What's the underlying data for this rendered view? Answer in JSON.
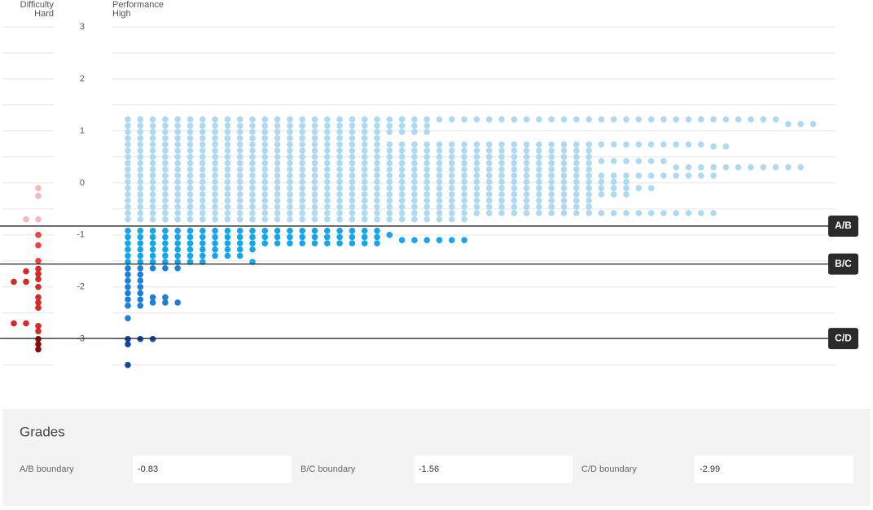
{
  "chart_data": {
    "type": "dot",
    "difficulty_header": [
      "Difficulty",
      "Hard"
    ],
    "performance_header": [
      "Performance",
      "High"
    ],
    "ylim": [
      -3.52,
      3
    ],
    "yticks": [
      3,
      2,
      1,
      0,
      -1,
      -2,
      -3
    ],
    "grid_lines": [
      3,
      2.5,
      2,
      1.5,
      1,
      0.5,
      0,
      -0.5,
      -1,
      -1.5,
      -2,
      -2.5,
      -3,
      -3.5
    ],
    "boundaries": [
      {
        "label": "A/B",
        "value": -0.83
      },
      {
        "label": "B/C",
        "value": -1.56
      },
      {
        "label": "C/D",
        "value": -2.99
      }
    ],
    "performance_colors": [
      "#aed9f2",
      "#14a6ea",
      "#1c7fdb",
      "#0d4aa6"
    ],
    "difficulty_colors": [
      "#f6b8b8",
      "#ee4040",
      "#d42a2a",
      "#8b0a0a"
    ],
    "difficulty_columns": [
      [
        -1.9,
        -2.7
      ],
      [
        -0.7,
        -1.7,
        -1.9,
        -2.7
      ],
      [
        -0.1,
        -0.25,
        -0.7,
        -1,
        -1.2,
        -1.5,
        -1.65,
        -1.75,
        -1.85,
        -2,
        -2.2,
        -2.3,
        -2.4,
        -2.75,
        -2.85,
        -3,
        -3.1,
        -3.2
      ]
    ],
    "performance_columns": [
      [
        1.22,
        1.1,
        0.98,
        0.86,
        0.74,
        0.62,
        0.5,
        0.38,
        0.26,
        0.14,
        0.02,
        -0.1,
        -0.22,
        -0.34,
        -0.46,
        -0.58,
        -0.7,
        -0.92,
        -1.04,
        -1.16,
        -1.28,
        -1.4,
        -1.52,
        -1.64,
        -1.76,
        -1.88,
        -2,
        -2.12,
        -2.24,
        -2.36,
        -2.6,
        -3,
        -3.1,
        -3.5
      ],
      [
        1.22,
        1.1,
        0.98,
        0.86,
        0.74,
        0.62,
        0.5,
        0.38,
        0.26,
        0.14,
        0.02,
        -0.1,
        -0.22,
        -0.34,
        -0.46,
        -0.58,
        -0.7,
        -0.92,
        -1.04,
        -1.16,
        -1.28,
        -1.4,
        -1.52,
        -1.64,
        -1.76,
        -1.88,
        -2,
        -2.12,
        -2.24,
        -2.36,
        -3
      ],
      [
        1.22,
        1.1,
        0.98,
        0.86,
        0.74,
        0.62,
        0.5,
        0.38,
        0.26,
        0.14,
        0.02,
        -0.1,
        -0.22,
        -0.34,
        -0.46,
        -0.58,
        -0.7,
        -0.92,
        -1.04,
        -1.16,
        -1.28,
        -1.4,
        -1.52,
        -1.64,
        -2.2,
        -2.3,
        -3
      ],
      [
        1.22,
        1.1,
        0.98,
        0.86,
        0.74,
        0.62,
        0.5,
        0.38,
        0.26,
        0.14,
        0.02,
        -0.1,
        -0.22,
        -0.34,
        -0.46,
        -0.58,
        -0.7,
        -0.92,
        -1.04,
        -1.16,
        -1.28,
        -1.4,
        -1.52,
        -1.64,
        -2.2,
        -2.3
      ],
      [
        1.22,
        1.1,
        0.98,
        0.86,
        0.74,
        0.62,
        0.5,
        0.38,
        0.26,
        0.14,
        0.02,
        -0.1,
        -0.22,
        -0.34,
        -0.46,
        -0.58,
        -0.7,
        -0.92,
        -1.04,
        -1.16,
        -1.28,
        -1.4,
        -1.52,
        -1.64,
        -2.3
      ],
      [
        1.22,
        1.1,
        0.98,
        0.86,
        0.74,
        0.62,
        0.5,
        0.38,
        0.26,
        0.14,
        0.02,
        -0.1,
        -0.22,
        -0.34,
        -0.46,
        -0.58,
        -0.7,
        -0.92,
        -1.04,
        -1.16,
        -1.28,
        -1.4,
        -1.52
      ],
      [
        1.22,
        1.1,
        0.98,
        0.86,
        0.74,
        0.62,
        0.5,
        0.38,
        0.26,
        0.14,
        0.02,
        -0.1,
        -0.22,
        -0.34,
        -0.46,
        -0.58,
        -0.7,
        -0.92,
        -1.04,
        -1.16,
        -1.28,
        -1.4,
        -1.52
      ],
      [
        1.22,
        1.1,
        0.98,
        0.86,
        0.74,
        0.62,
        0.5,
        0.38,
        0.26,
        0.14,
        0.02,
        -0.1,
        -0.22,
        -0.34,
        -0.46,
        -0.58,
        -0.7,
        -0.92,
        -1.04,
        -1.16,
        -1.28,
        -1.4
      ],
      [
        1.22,
        1.1,
        0.98,
        0.86,
        0.74,
        0.62,
        0.5,
        0.38,
        0.26,
        0.14,
        0.02,
        -0.1,
        -0.22,
        -0.34,
        -0.46,
        -0.58,
        -0.7,
        -0.92,
        -1.04,
        -1.16,
        -1.28,
        -1.4
      ],
      [
        1.22,
        1.1,
        0.98,
        0.86,
        0.74,
        0.62,
        0.5,
        0.38,
        0.26,
        0.14,
        0.02,
        -0.1,
        -0.22,
        -0.34,
        -0.46,
        -0.58,
        -0.7,
        -0.92,
        -1.04,
        -1.16,
        -1.28,
        -1.4
      ],
      [
        1.22,
        1.1,
        0.98,
        0.86,
        0.74,
        0.62,
        0.5,
        0.38,
        0.26,
        0.14,
        0.02,
        -0.1,
        -0.22,
        -0.34,
        -0.46,
        -0.58,
        -0.7,
        -0.92,
        -1.04,
        -1.16,
        -1.28,
        -1.52
      ],
      [
        1.22,
        1.1,
        0.98,
        0.86,
        0.74,
        0.62,
        0.5,
        0.38,
        0.26,
        0.14,
        0.02,
        -0.1,
        -0.22,
        -0.34,
        -0.46,
        -0.58,
        -0.7,
        -0.92,
        -1.04,
        -1.16
      ],
      [
        1.22,
        1.1,
        0.98,
        0.86,
        0.74,
        0.62,
        0.5,
        0.38,
        0.26,
        0.14,
        0.02,
        -0.1,
        -0.22,
        -0.34,
        -0.46,
        -0.58,
        -0.7,
        -0.92,
        -1.04,
        -1.16
      ],
      [
        1.22,
        1.1,
        0.98,
        0.86,
        0.74,
        0.62,
        0.5,
        0.38,
        0.26,
        0.14,
        0.02,
        -0.1,
        -0.22,
        -0.34,
        -0.46,
        -0.58,
        -0.7,
        -0.92,
        -1.04,
        -1.16
      ],
      [
        1.22,
        1.1,
        0.98,
        0.86,
        0.74,
        0.62,
        0.5,
        0.38,
        0.26,
        0.14,
        0.02,
        -0.1,
        -0.22,
        -0.34,
        -0.46,
        -0.58,
        -0.7,
        -0.92,
        -1.04,
        -1.16
      ],
      [
        1.22,
        1.1,
        0.98,
        0.86,
        0.74,
        0.62,
        0.5,
        0.38,
        0.26,
        0.14,
        0.02,
        -0.1,
        -0.22,
        -0.34,
        -0.46,
        -0.58,
        -0.7,
        -0.92,
        -1.04,
        -1.16
      ],
      [
        1.22,
        1.1,
        0.98,
        0.86,
        0.74,
        0.62,
        0.5,
        0.38,
        0.26,
        0.14,
        0.02,
        -0.1,
        -0.22,
        -0.34,
        -0.46,
        -0.58,
        -0.7,
        -0.92,
        -1.04,
        -1.16
      ],
      [
        1.22,
        1.1,
        0.98,
        0.86,
        0.74,
        0.62,
        0.5,
        0.38,
        0.26,
        0.14,
        0.02,
        -0.1,
        -0.22,
        -0.34,
        -0.46,
        -0.58,
        -0.7,
        -0.92,
        -1.04,
        -1.16
      ],
      [
        1.22,
        1.1,
        0.98,
        0.86,
        0.74,
        0.62,
        0.5,
        0.38,
        0.26,
        0.14,
        0.02,
        -0.1,
        -0.22,
        -0.34,
        -0.46,
        -0.58,
        -0.7,
        -0.92,
        -1.04,
        -1.16
      ],
      [
        1.22,
        1.1,
        0.98,
        0.86,
        0.74,
        0.62,
        0.5,
        0.38,
        0.26,
        0.14,
        0.02,
        -0.1,
        -0.22,
        -0.34,
        -0.46,
        -0.58,
        -0.7,
        -0.92,
        -1.04,
        -1.16
      ],
      [
        1.22,
        1.1,
        0.98,
        0.86,
        0.74,
        0.62,
        0.5,
        0.38,
        0.26,
        0.14,
        0.02,
        -0.1,
        -0.22,
        -0.34,
        -0.46,
        -0.58,
        -0.7,
        -0.92,
        -1.04,
        -1.16
      ],
      [
        1.22,
        1.1,
        0.98,
        0.74,
        0.62,
        0.5,
        0.38,
        0.26,
        0.14,
        0.02,
        -0.1,
        -0.22,
        -0.34,
        -0.46,
        -0.58,
        -0.7,
        -1
      ],
      [
        1.22,
        1.1,
        0.98,
        0.74,
        0.62,
        0.5,
        0.38,
        0.26,
        0.14,
        0.02,
        -0.1,
        -0.22,
        -0.34,
        -0.46,
        -0.58,
        -0.7,
        -1.1
      ],
      [
        1.22,
        1.1,
        0.98,
        0.74,
        0.62,
        0.5,
        0.38,
        0.26,
        0.14,
        0.02,
        -0.1,
        -0.22,
        -0.34,
        -0.46,
        -0.58,
        -0.7,
        -1.1
      ],
      [
        1.22,
        1.1,
        0.98,
        0.74,
        0.62,
        0.5,
        0.38,
        0.26,
        0.14,
        0.02,
        -0.1,
        -0.22,
        -0.34,
        -0.46,
        -0.58,
        -0.7,
        -1.1
      ],
      [
        1.22,
        0.74,
        0.62,
        0.5,
        0.38,
        0.26,
        0.14,
        0.02,
        -0.1,
        -0.22,
        -0.34,
        -0.46,
        -0.58,
        -0.7,
        -1.1
      ],
      [
        1.22,
        0.74,
        0.62,
        0.5,
        0.38,
        0.26,
        0.14,
        0.02,
        -0.1,
        -0.22,
        -0.34,
        -0.46,
        -0.58,
        -0.7,
        -1.1
      ],
      [
        1.22,
        0.74,
        0.62,
        0.5,
        0.38,
        0.26,
        0.14,
        0.02,
        -0.1,
        -0.22,
        -0.34,
        -0.46,
        -0.58,
        -0.7,
        -1.1
      ],
      [
        1.22,
        0.74,
        0.62,
        0.5,
        0.38,
        0.26,
        0.14,
        0.02,
        -0.1,
        -0.22,
        -0.34,
        -0.46,
        -0.58
      ],
      [
        1.22,
        0.74,
        0.62,
        0.5,
        0.38,
        0.26,
        0.14,
        0.02,
        -0.1,
        -0.22,
        -0.34,
        -0.46,
        -0.58
      ],
      [
        1.22,
        0.74,
        0.62,
        0.5,
        0.38,
        0.26,
        0.14,
        0.02,
        -0.1,
        -0.22,
        -0.34,
        -0.46,
        -0.58
      ],
      [
        1.22,
        0.74,
        0.62,
        0.5,
        0.38,
        0.26,
        0.14,
        0.02,
        -0.1,
        -0.22,
        -0.34,
        -0.46,
        -0.58
      ],
      [
        1.22,
        0.74,
        0.62,
        0.5,
        0.38,
        0.26,
        0.14,
        0.02,
        -0.1,
        -0.22,
        -0.34,
        -0.46,
        -0.58
      ],
      [
        1.22,
        0.74,
        0.62,
        0.5,
        0.38,
        0.26,
        0.14,
        0.02,
        -0.1,
        -0.22,
        -0.34,
        -0.46,
        -0.58
      ],
      [
        1.22,
        0.74,
        0.62,
        0.5,
        0.38,
        0.26,
        0.14,
        0.02,
        -0.1,
        -0.22,
        -0.34,
        -0.46,
        -0.58
      ],
      [
        1.22,
        0.74,
        0.62,
        0.5,
        0.38,
        0.26,
        0.14,
        0.02,
        -0.1,
        -0.22,
        -0.34,
        -0.46,
        -0.58
      ],
      [
        1.22,
        0.74,
        0.62,
        0.5,
        0.38,
        0.26,
        0.14,
        0.02,
        -0.1,
        -0.22,
        -0.34,
        -0.46,
        -0.58
      ],
      [
        1.22,
        0.74,
        0.62,
        0.5,
        0.38,
        0.26,
        0.14,
        0.02,
        -0.1,
        -0.22,
        -0.34,
        -0.46,
        -0.58
      ],
      [
        1.22,
        0.74,
        0.42,
        0.14,
        0.02,
        -0.1,
        -0.22,
        -0.58
      ],
      [
        1.22,
        0.74,
        0.42,
        0.14,
        0.02,
        -0.1,
        -0.22,
        -0.58
      ],
      [
        1.22,
        0.74,
        0.42,
        0.14,
        0.02,
        -0.1,
        -0.22,
        -0.58
      ],
      [
        1.22,
        0.74,
        0.42,
        0.14,
        -0.1,
        -0.58
      ],
      [
        1.22,
        0.74,
        0.42,
        0.14,
        -0.1,
        -0.58
      ],
      [
        1.22,
        0.74,
        0.42,
        0.14,
        -0.58
      ],
      [
        1.22,
        0.74,
        0.3,
        0.14,
        -0.58
      ],
      [
        1.22,
        0.74,
        0.3,
        0.14,
        -0.58
      ],
      [
        1.22,
        0.74,
        0.3,
        0.14,
        -0.58
      ],
      [
        1.22,
        0.7,
        0.3,
        0.14,
        -0.58
      ],
      [
        1.22,
        0.7,
        0.3
      ],
      [
        1.22,
        0.3
      ],
      [
        1.22,
        0.3
      ],
      [
        1.22,
        0.3
      ],
      [
        1.22,
        0.3
      ],
      [
        1.13,
        0.3
      ],
      [
        1.13,
        0.3
      ],
      [
        1.13
      ]
    ]
  },
  "grades": {
    "title": "Grades",
    "fields": [
      "A/B boundary",
      "B/C boundary",
      "C/D boundary"
    ]
  }
}
